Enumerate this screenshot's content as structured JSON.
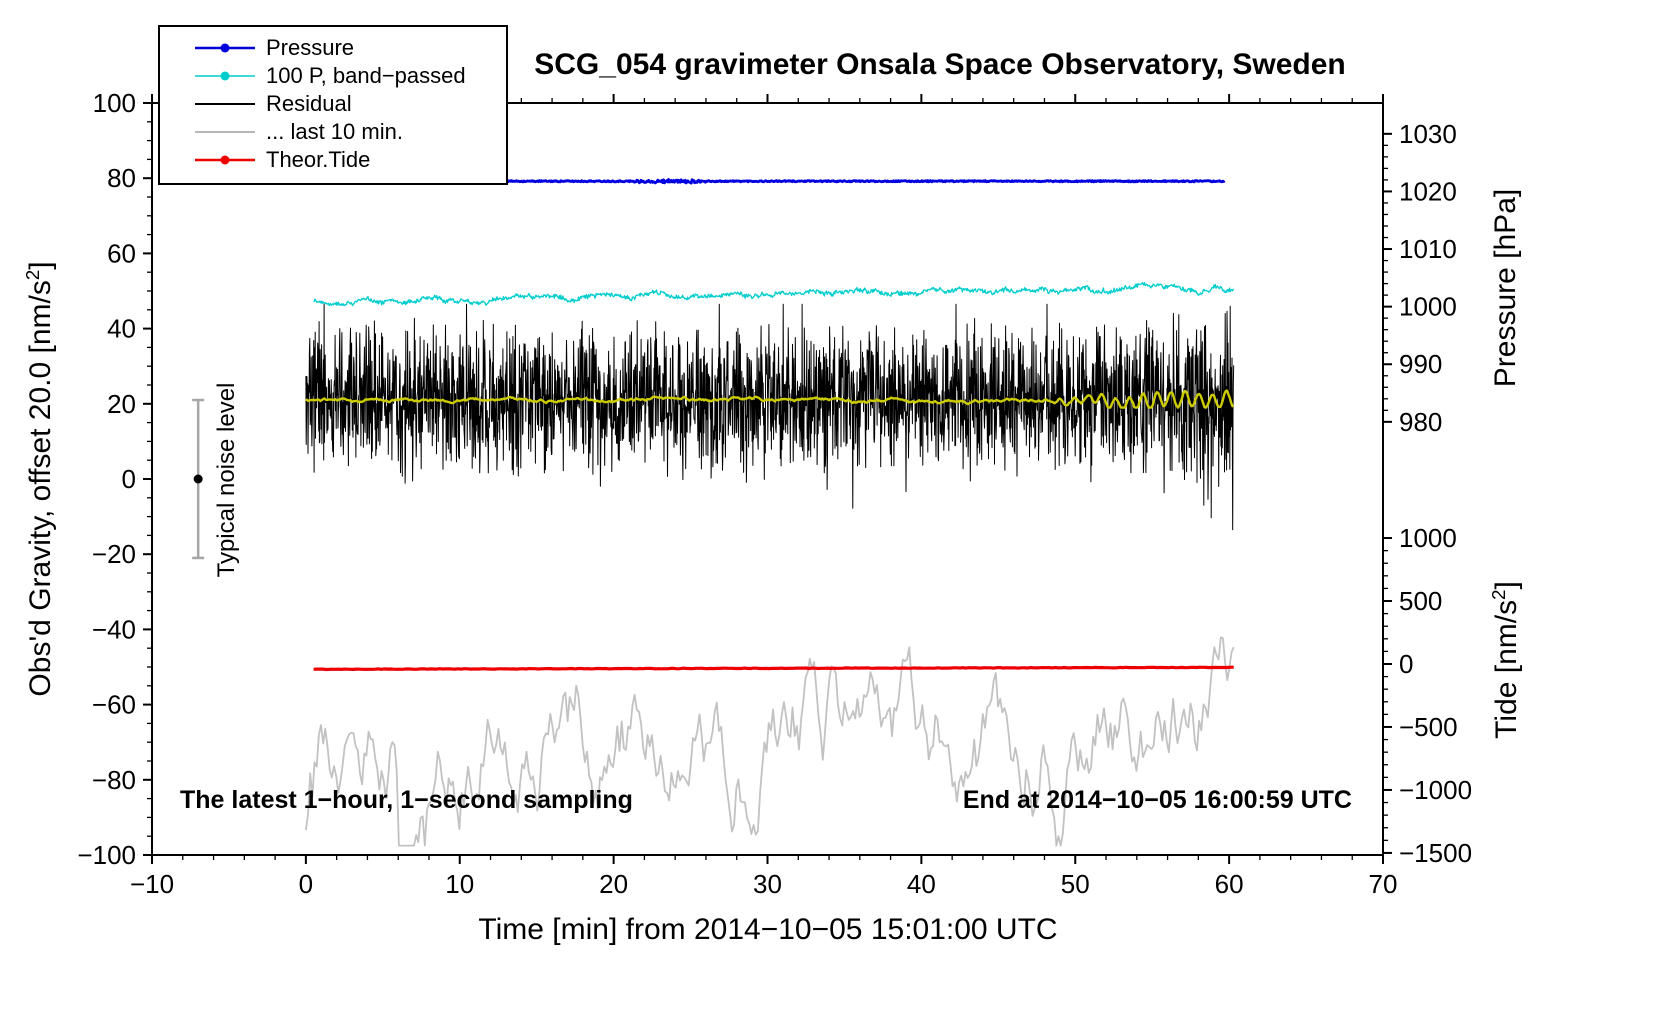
{
  "chart_data": {
    "type": "line",
    "title": "SCG_054 gravimeter Onsala Space Observatory, Sweden",
    "xlabel": "Time [min] from 2014−10−05 15:01:00 UTC",
    "annotations": {
      "sampling": "The latest 1−hour, 1−second sampling",
      "end_time": "End at 2014−10−05 16:00:59 UTC"
    },
    "axes": {
      "x": {
        "lim": [
          -10,
          70
        ],
        "ticks": [
          -10,
          0,
          10,
          20,
          30,
          40,
          50,
          60,
          70
        ],
        "minor_step": 2
      },
      "left": {
        "label_pre": "Obs'd Gravity, offset 20.0 [nm/s",
        "label_sup": "2",
        "label_post": "]",
        "lim": [
          -100,
          100
        ],
        "ticks": [
          -100,
          -80,
          -60,
          -40,
          -20,
          0,
          20,
          40,
          60,
          80,
          100
        ],
        "minor_step": 5
      },
      "right_pressure": {
        "label": "Pressure [hPa]",
        "ticks": [
          1030,
          1020,
          1010,
          1000,
          990,
          980
        ],
        "minor_step": 2,
        "map": {
          "value0": 980,
          "left0": 15.2,
          "left_per_unit": 1.532
        }
      },
      "right_tide": {
        "label_pre": "Tide [nm/s",
        "label_sup": "2",
        "label_post": "]",
        "ticks": [
          1000,
          500,
          0,
          -500,
          -1000,
          -1500
        ],
        "minor_step": 100,
        "map": {
          "value0": 0,
          "left0": -49.2,
          "left_per_unit": 0.0335
        }
      }
    },
    "noise_marker": {
      "x": -7,
      "from": -21,
      "to": 21,
      "dot_at": 0,
      "label": "Typical noise level",
      "color": "#a6a6a6",
      "dot_color": "#000000"
    },
    "legend": {
      "items": [
        {
          "id": "pressure",
          "label": "Pressure",
          "color": "#0000dd",
          "dot": true,
          "width": 2.5
        },
        {
          "id": "band_passed",
          "label": "100 P, band−passed",
          "color": "#00cccc",
          "dot": true,
          "width": 1.5
        },
        {
          "id": "residual",
          "label": "Residual",
          "color": "#000000",
          "dot": false,
          "width": 2.0
        },
        {
          "id": "last10",
          "label": "... last 10 min.",
          "color": "#b8b8b8",
          "dot": false,
          "width": 2.0
        },
        {
          "id": "theor_tide",
          "label": "Theor.Tide",
          "color": "#ee0000",
          "dot": true,
          "width": 2.5
        }
      ]
    },
    "series": [
      {
        "id": "last10",
        "kind": "walk",
        "color": "#c2c2c2",
        "width": 1.8,
        "x_range": [
          0,
          60.3
        ],
        "n": 430,
        "baseline": -64.5,
        "ar": 0.9,
        "step": 0.95,
        "scale": 8.0,
        "spike_prob": 0.012,
        "spike_amp": 2.2,
        "clamp": [
          -97.5,
          -33.5
        ],
        "seed": 66,
        "summary": "Residual of last 10 min (time-expanded), mean -64.5 left-units (~ -470 nm/s2 tide scale), excursions -97 to -34"
      },
      {
        "id": "theor_tide",
        "kind": "trend",
        "color": "#ee0000",
        "width": 3.2,
        "x_range": [
          0.5,
          60.3
        ],
        "n": 300,
        "baseline": -50.6,
        "trend": 0.5,
        "noise": 0.07,
        "clamp": [
          -51.2,
          -49.8
        ],
        "seed": 55,
        "summary": "Theoretical tide, nearly flat at ~0 nm/s2 on tide axis (-50 left-units)"
      },
      {
        "id": "pressure",
        "kind": "trend",
        "color": "#0000e0",
        "width": 2.8,
        "x_range": [
          0,
          59.7
        ],
        "n": 1100,
        "baseline": 79.2,
        "trend": 0.0,
        "noise": 0.16,
        "wobble": {
          "from": 21,
          "to": 26,
          "amp": 0.35
        },
        "clamp": [
          78.5,
          80.0
        ],
        "seed": 11,
        "summary": "Barometric pressure, constant ~1021 hPa (79 left-units)"
      },
      {
        "id": "band_passed",
        "kind": "wander",
        "color": "#00cdcd",
        "width": 1.3,
        "x_range": [
          0.5,
          60.3
        ],
        "n": 1300,
        "baseline": 47.6,
        "trend": 3.1,
        "ease": true,
        "wander_ar": 0.96,
        "wander_step": 0.25,
        "fast": 0.5,
        "clamp": [
          45.5,
          52.2
        ],
        "seed": 22,
        "summary": "100 x band-passed pressure, rises slowly from ~47.5 to ~50.8 left-units"
      },
      {
        "id": "residual",
        "kind": "spiky",
        "color": "#000000",
        "width": 1,
        "x_range": [
          0,
          60.3
        ],
        "n": 2600,
        "baseline": 21,
        "amp": 22,
        "spike_prob": 0.012,
        "spike_amp": [
          10,
          24
        ],
        "late_from": 54,
        "late_mult": 1.3,
        "late_spike_prob": 0.025,
        "late_spike_amp": [
          18,
          34
        ],
        "clamp": [
          -13.5,
          46.5
        ],
        "seed": 33,
        "summary": "Gravity residual, dense noise band centered at 21 left-units, typical +/-10, peaks to 46, late dips to -13 after min 55"
      },
      {
        "id": "residual_lowpass",
        "kind": "walk",
        "color": "#cccc00",
        "width": 2.4,
        "x_range": [
          0,
          60.3
        ],
        "n": 700,
        "baseline": 21,
        "ar": 0.93,
        "step": 0.3,
        "scale": 1.0,
        "spike_prob": 0,
        "spike_amp": 0,
        "clamp": [
          19,
          23.5
        ],
        "late_osc": {
          "from": 47,
          "amp": 2.1,
          "period": 0.9
        },
        "seed": 44,
        "summary": "Low-passed residual (yellow), ~21 left-units, oscillation grows after min 47"
      }
    ]
  }
}
